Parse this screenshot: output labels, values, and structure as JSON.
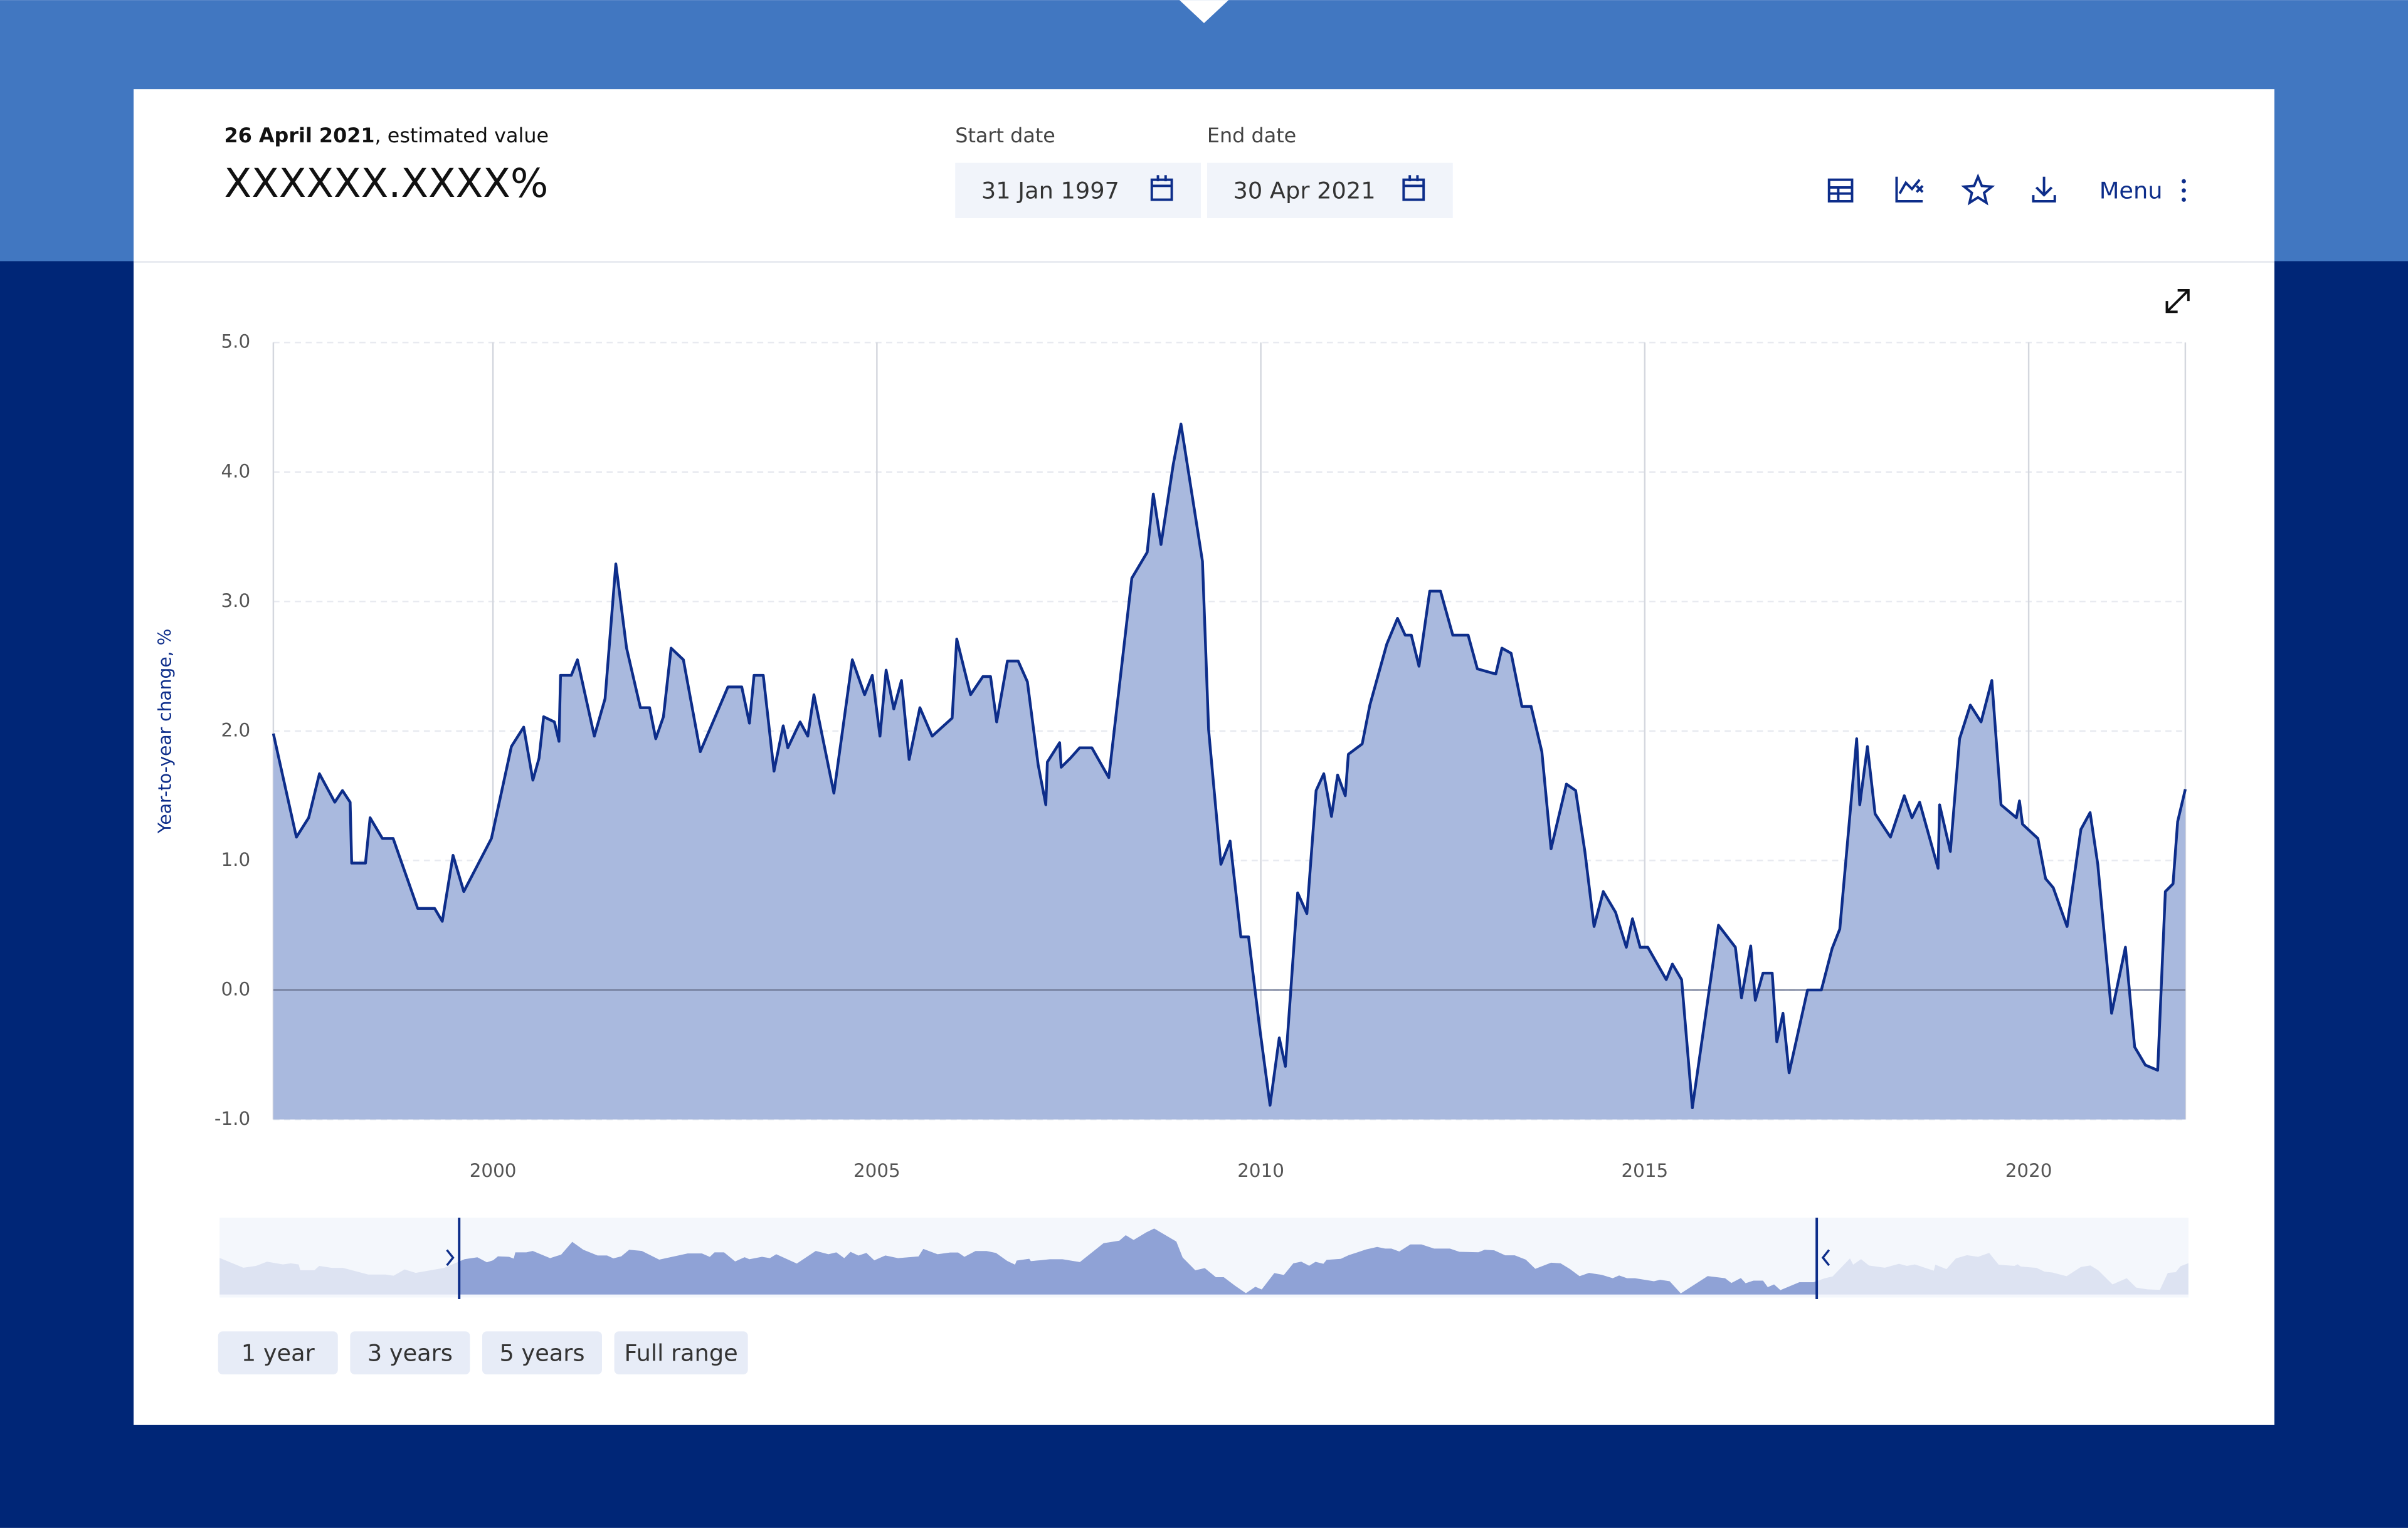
{
  "header": {
    "date": "26 April 2021",
    "date_suffix": ", estimated value",
    "value": "XXXXXX.XXXX%",
    "start_label": "Start date",
    "start_value": "31 Jan 1997",
    "end_label": "End date",
    "end_value": "30 Apr 2021",
    "menu": "Menu"
  },
  "range_buttons": [
    "1 year",
    "3 years",
    "5 years",
    "Full range"
  ],
  "chart_data": {
    "type": "area",
    "y_label": "Year-to-year change, %",
    "color": "#0d2d8a",
    "fill": "#a9b9de",
    "grid": true,
    "xlim": [
      1997.14,
      2022.04
    ],
    "xticks": [
      2000,
      2005,
      2010,
      2015,
      2020
    ],
    "ylim": [
      -1,
      5
    ],
    "yticks": [
      {
        "value": 5,
        "label": "5.0"
      },
      {
        "value": 4,
        "label": "4.0"
      },
      {
        "value": 3,
        "label": "3.0"
      },
      {
        "value": 2,
        "label": "2.0"
      },
      {
        "value": 1,
        "label": "1.0"
      },
      {
        "value": 0,
        "label": "0.0"
      },
      {
        "value": -1,
        "label": "-1.0"
      }
    ],
    "x": [
      1997.14,
      1997.44,
      1997.6,
      1997.74,
      1997.94,
      1998.04,
      1998.14,
      1998.16,
      1998.34,
      1998.4,
      1998.56,
      1998.7,
      1999.02,
      1999.24,
      1999.34,
      1999.48,
      1999.62,
      1999.98,
      2000.24,
      2000.4,
      2000.52,
      2000.6,
      2000.66,
      2000.8,
      2000.86,
      2000.88,
      2001.02,
      2001.1,
      2001.32,
      2001.46,
      2001.6,
      2001.74,
      2001.92,
      2002.04,
      2002.12,
      2002.22,
      2002.32,
      2002.48,
      2002.7,
      2003.06,
      2003.24,
      2003.34,
      2003.4,
      2003.52,
      2003.66,
      2003.78,
      2003.84,
      2004.0,
      2004.1,
      2004.18,
      2004.44,
      2004.68,
      2004.84,
      2004.94,
      2005.04,
      2005.12,
      2005.22,
      2005.32,
      2005.42,
      2005.56,
      2005.72,
      2005.98,
      2006.04,
      2006.22,
      2006.38,
      2006.48,
      2006.56,
      2006.7,
      2006.84,
      2006.96,
      2007.1,
      2007.2,
      2007.22,
      2007.38,
      2007.4,
      2007.52,
      2007.64,
      2007.8,
      2008.02,
      2008.32,
      2008.52,
      2008.6,
      2008.7,
      2008.86,
      2008.96,
      2009.24,
      2009.32,
      2009.48,
      2009.6,
      2009.74,
      2009.84,
      2009.98,
      2010.12,
      2010.24,
      2010.32,
      2010.48,
      2010.6,
      2010.72,
      2010.82,
      2010.92,
      2011.0,
      2011.1,
      2011.14,
      2011.32,
      2011.42,
      2011.64,
      2011.78,
      2011.88,
      2011.96,
      2012.06,
      2012.2,
      2012.34,
      2012.5,
      2012.7,
      2012.82,
      2013.06,
      2013.14,
      2013.26,
      2013.4,
      2013.52,
      2013.66,
      2013.78,
      2013.98,
      2014.1,
      2014.22,
      2014.34,
      2014.46,
      2014.62,
      2014.76,
      2014.84,
      2014.94,
      2015.04,
      2015.28,
      2015.36,
      2015.48,
      2015.62,
      2015.96,
      2016.18,
      2016.26,
      2016.38,
      2016.44,
      2016.54,
      2016.66,
      2016.72,
      2016.8,
      2016.88,
      2017.12,
      2017.3,
      2017.44,
      2017.54,
      2017.76,
      2017.8,
      2017.9,
      2018.0,
      2018.2,
      2018.38,
      2018.48,
      2018.58,
      2018.82,
      2018.84,
      2018.98,
      2019.1,
      2019.24,
      2019.38,
      2019.52,
      2019.64,
      2019.84,
      2019.88,
      2019.92,
      2020.12,
      2020.22,
      2020.32,
      2020.5,
      2020.68,
      2020.8,
      2020.9,
      2021.08,
      2021.26,
      2021.38,
      2021.52,
      2021.68,
      2021.78,
      2021.88,
      2021.94,
      2022.04
    ],
    "values": [
      1.98,
      1.18,
      1.33,
      1.67,
      1.45,
      1.54,
      1.45,
      0.98,
      0.98,
      1.33,
      1.17,
      1.17,
      0.63,
      0.63,
      0.53,
      1.04,
      0.76,
      1.17,
      1.88,
      2.03,
      1.62,
      1.79,
      2.11,
      2.07,
      1.92,
      2.43,
      2.43,
      2.55,
      1.96,
      2.25,
      3.29,
      2.64,
      2.18,
      2.18,
      1.94,
      2.11,
      2.64,
      2.55,
      1.84,
      2.34,
      2.34,
      2.06,
      2.43,
      2.43,
      1.69,
      2.04,
      1.87,
      2.07,
      1.96,
      2.28,
      1.52,
      2.55,
      2.28,
      2.43,
      1.96,
      2.47,
      2.17,
      2.39,
      1.78,
      2.18,
      1.96,
      2.1,
      2.71,
      2.28,
      2.42,
      2.42,
      2.07,
      2.54,
      2.54,
      2.38,
      1.74,
      1.43,
      1.76,
      1.91,
      1.72,
      1.79,
      1.87,
      1.87,
      1.64,
      3.18,
      3.38,
      3.83,
      3.44,
      4.06,
      4.37,
      3.31,
      2.01,
      0.97,
      1.15,
      0.41,
      0.41,
      -0.27,
      -0.89,
      -0.37,
      -0.59,
      0.75,
      0.59,
      1.54,
      1.67,
      1.34,
      1.66,
      1.5,
      1.82,
      1.9,
      2.2,
      2.67,
      2.87,
      2.74,
      2.74,
      2.5,
      3.08,
      3.08,
      2.74,
      2.74,
      2.48,
      2.44,
      2.64,
      2.6,
      2.19,
      2.19,
      1.84,
      1.09,
      1.59,
      1.54,
      1.07,
      0.49,
      0.76,
      0.6,
      0.33,
      0.55,
      0.33,
      0.33,
      0.08,
      0.2,
      0.08,
      -0.91,
      0.5,
      0.33,
      -0.06,
      0.34,
      -0.08,
      0.13,
      0.13,
      -0.4,
      -0.18,
      -0.64,
      0,
      0,
      0.32,
      0.47,
      1.94,
      1.43,
      1.88,
      1.36,
      1.18,
      1.5,
      1.33,
      1.45,
      0.94,
      1.43,
      1.07,
      1.94,
      2.2,
      2.07,
      2.39,
      1.43,
      1.33,
      1.46,
      1.28,
      1.17,
      0.86,
      0.79,
      0.49,
      1.24,
      1.37,
      0.97,
      -0.18,
      0.33,
      -0.44,
      -0.58,
      -0.62,
      0.76,
      0.82,
      1.3,
      1.55
    ]
  }
}
